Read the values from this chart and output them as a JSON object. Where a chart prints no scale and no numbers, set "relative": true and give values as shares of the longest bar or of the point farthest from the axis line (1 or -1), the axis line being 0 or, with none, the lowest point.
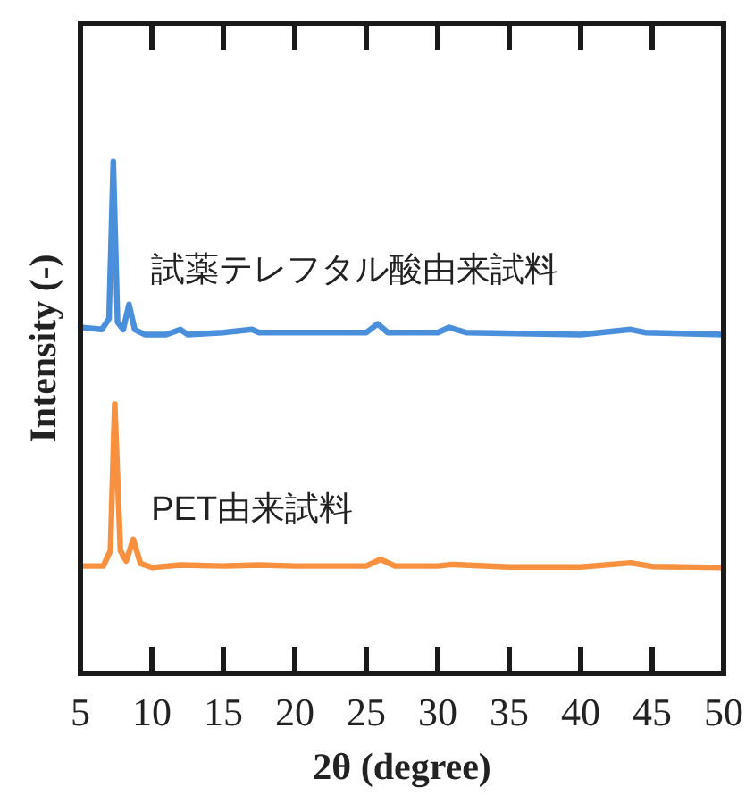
{
  "chart_data": {
    "type": "line",
    "xlabel": "2θ (degree)",
    "ylabel": "Intensity (-)",
    "relative": true,
    "xlim": [
      5,
      50
    ],
    "xticks": [
      5,
      10,
      15,
      20,
      25,
      30,
      35,
      40,
      45,
      50
    ],
    "series": [
      {
        "name": "試薬テレフタル酸由来試料",
        "color": "#4a8fdc",
        "x": [
          5,
          6.5,
          7.0,
          7.3,
          7.6,
          8.0,
          8.4,
          8.8,
          9.5,
          11,
          12,
          12.5,
          15,
          17,
          17.5,
          20,
          25,
          25.8,
          26.5,
          30,
          30.8,
          32,
          40,
          43.5,
          44.5,
          50
        ],
        "values": [
          0.676,
          0.672,
          0.693,
          1,
          0.686,
          0.672,
          0.721,
          0.672,
          0.662,
          0.662,
          0.672,
          0.662,
          0.666,
          0.672,
          0.666,
          0.666,
          0.666,
          0.683,
          0.666,
          0.666,
          0.676,
          0.666,
          0.662,
          0.672,
          0.666,
          0.662
        ]
      },
      {
        "name": "PET由来試料",
        "color": "#f79140",
        "x": [
          5,
          6.6,
          7.1,
          7.4,
          7.8,
          8.2,
          8.7,
          9.2,
          10,
          12,
          15,
          17.5,
          20,
          25,
          26.0,
          27,
          30,
          31,
          35,
          40,
          43.5,
          45,
          50
        ],
        "values": [
          0.21,
          0.21,
          0.24,
          0.526,
          0.24,
          0.22,
          0.262,
          0.215,
          0.207,
          0.212,
          0.21,
          0.212,
          0.21,
          0.21,
          0.223,
          0.21,
          0.21,
          0.213,
          0.208,
          0.208,
          0.216,
          0.209,
          0.207
        ]
      }
    ]
  }
}
